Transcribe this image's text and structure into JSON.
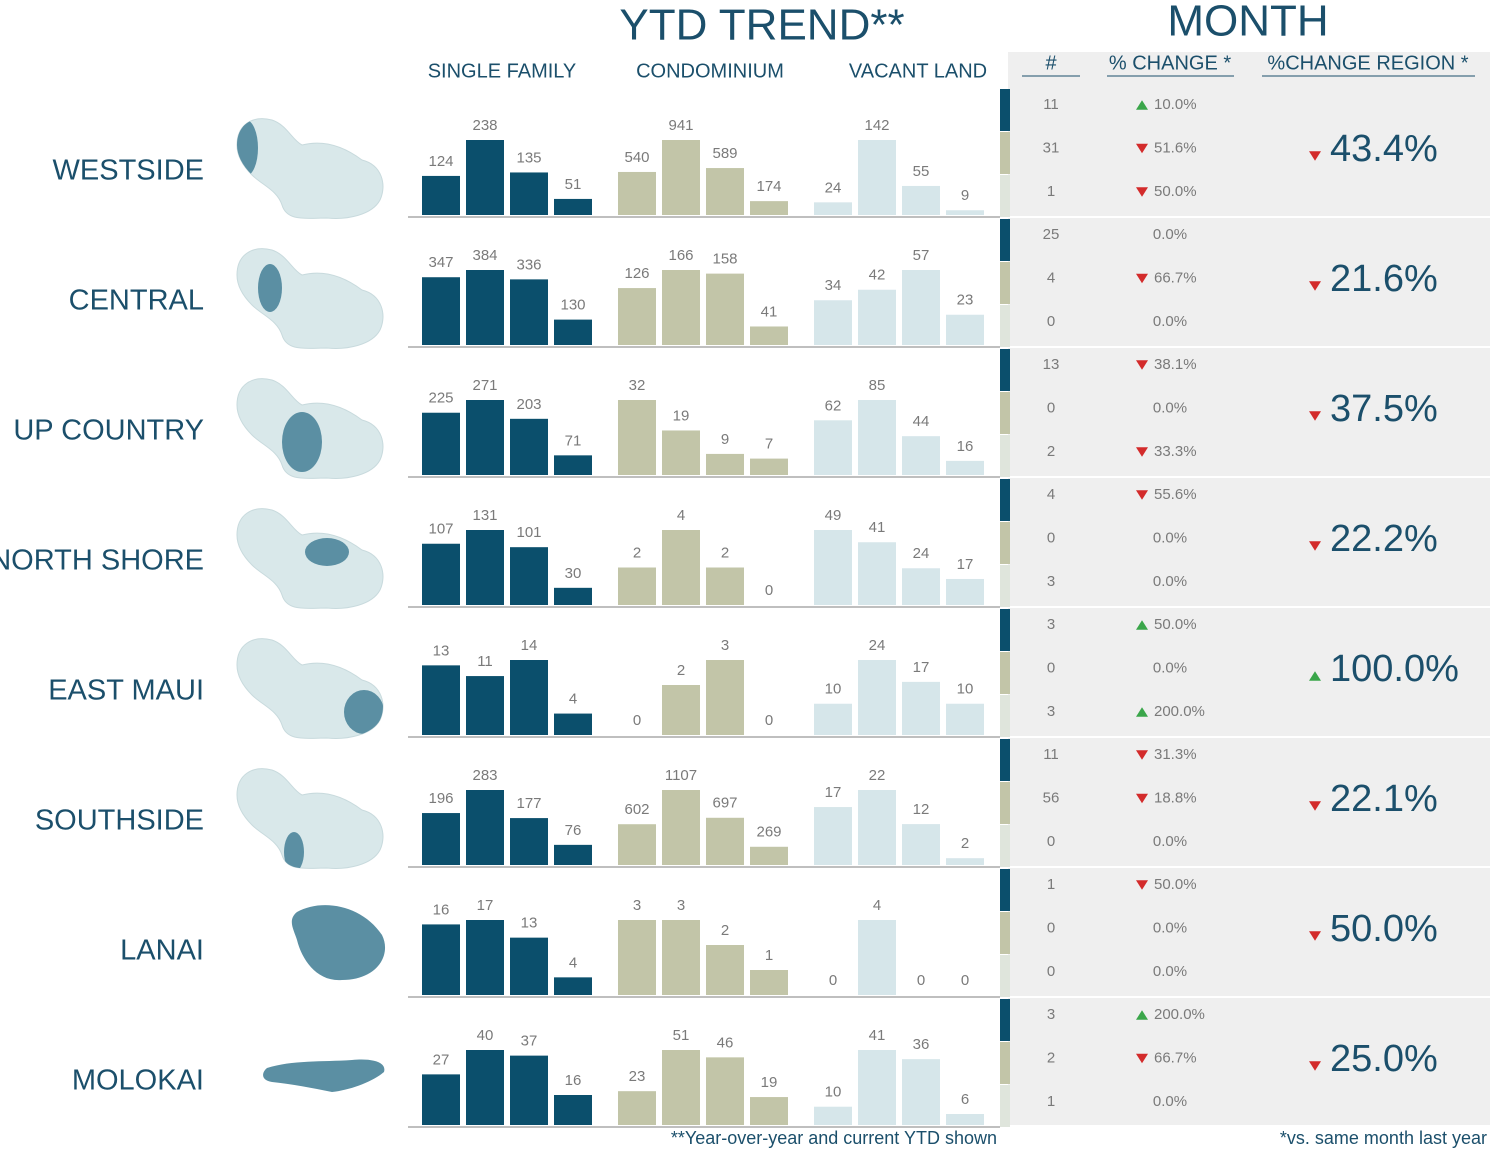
{
  "header": {
    "ytd_title": "YTD TREND**",
    "month_title": "MONTH",
    "columns": [
      "SINGLE FAMILY",
      "CONDOMINIUM",
      "VACANT LAND"
    ],
    "month_columns": [
      "#",
      "% CHANGE *",
      "%CHANGE REGION *"
    ]
  },
  "regions": [
    {
      "name": "WESTSIDE",
      "single_family": [
        124,
        238,
        135,
        51
      ],
      "condominium": [
        540,
        941,
        589,
        174
      ],
      "vacant_land": [
        24,
        142,
        55,
        9
      ],
      "month": [
        {
          "count": 11,
          "change": "10.0%",
          "dir": "up"
        },
        {
          "count": 31,
          "change": "51.6%",
          "dir": "down"
        },
        {
          "count": 1,
          "change": "50.0%",
          "dir": "down"
        }
      ],
      "region_change": "43.4%",
      "region_dir": "down"
    },
    {
      "name": "CENTRAL",
      "single_family": [
        347,
        384,
        336,
        130
      ],
      "condominium": [
        126,
        166,
        158,
        41
      ],
      "vacant_land": [
        34,
        42,
        57,
        23
      ],
      "month": [
        {
          "count": 25,
          "change": "0.0%"
        },
        {
          "count": 4,
          "change": "66.7%",
          "dir": "down"
        },
        {
          "count": 0,
          "change": "0.0%"
        }
      ],
      "region_change": "21.6%",
      "region_dir": "down"
    },
    {
      "name": "UP COUNTRY",
      "single_family": [
        225,
        271,
        203,
        71
      ],
      "condominium": [
        32,
        19,
        9,
        7
      ],
      "vacant_land": [
        62,
        85,
        44,
        16
      ],
      "month": [
        {
          "count": 13,
          "change": "38.1%",
          "dir": "down"
        },
        {
          "count": 0,
          "change": "0.0%"
        },
        {
          "count": 2,
          "change": "33.3%",
          "dir": "down"
        }
      ],
      "region_change": "37.5%",
      "region_dir": "down"
    },
    {
      "name": "NORTH SHORE",
      "single_family": [
        107,
        131,
        101,
        30
      ],
      "condominium": [
        2,
        4,
        2,
        0
      ],
      "vacant_land": [
        49,
        41,
        24,
        17
      ],
      "month": [
        {
          "count": 4,
          "change": "55.6%",
          "dir": "down"
        },
        {
          "count": 0,
          "change": "0.0%"
        },
        {
          "count": 3,
          "change": "0.0%"
        }
      ],
      "region_change": "22.2%",
      "region_dir": "down"
    },
    {
      "name": "EAST MAUI",
      "single_family": [
        13,
        11,
        14,
        4
      ],
      "condominium": [
        0,
        2,
        3,
        0
      ],
      "vacant_land": [
        10,
        24,
        17,
        10
      ],
      "month": [
        {
          "count": 3,
          "change": "50.0%",
          "dir": "up"
        },
        {
          "count": 0,
          "change": "0.0%"
        },
        {
          "count": 3,
          "change": "200.0%",
          "dir": "up"
        }
      ],
      "region_change": "100.0%",
      "region_dir": "up"
    },
    {
      "name": "SOUTHSIDE",
      "single_family": [
        196,
        283,
        177,
        76
      ],
      "condominium": [
        602,
        1107,
        697,
        269
      ],
      "vacant_land": [
        17,
        22,
        12,
        2
      ],
      "month": [
        {
          "count": 11,
          "change": "31.3%",
          "dir": "down"
        },
        {
          "count": 56,
          "change": "18.8%",
          "dir": "down"
        },
        {
          "count": 0,
          "change": "0.0%"
        }
      ],
      "region_change": "22.1%",
      "region_dir": "down"
    },
    {
      "name": "LANAI",
      "single_family": [
        16,
        17,
        13,
        4
      ],
      "condominium": [
        3,
        3,
        2,
        1
      ],
      "vacant_land": [
        0,
        4,
        0,
        0
      ],
      "month": [
        {
          "count": 1,
          "change": "50.0%",
          "dir": "down"
        },
        {
          "count": 0,
          "change": "0.0%"
        },
        {
          "count": 0,
          "change": "0.0%"
        }
      ],
      "region_change": "50.0%",
      "region_dir": "down"
    },
    {
      "name": "MOLOKAI",
      "single_family": [
        27,
        40,
        37,
        16
      ],
      "condominium": [
        23,
        51,
        46,
        19
      ],
      "vacant_land": [
        10,
        41,
        36,
        6
      ],
      "month": [
        {
          "count": 3,
          "change": "200.0%",
          "dir": "up"
        },
        {
          "count": 2,
          "change": "66.7%",
          "dir": "down"
        },
        {
          "count": 1,
          "change": "0.0%"
        }
      ],
      "region_change": "25.0%",
      "region_dir": "down"
    }
  ],
  "footnotes": [
    "**Year-over-year and current YTD shown",
    "*vs. same month last year"
  ]
}
